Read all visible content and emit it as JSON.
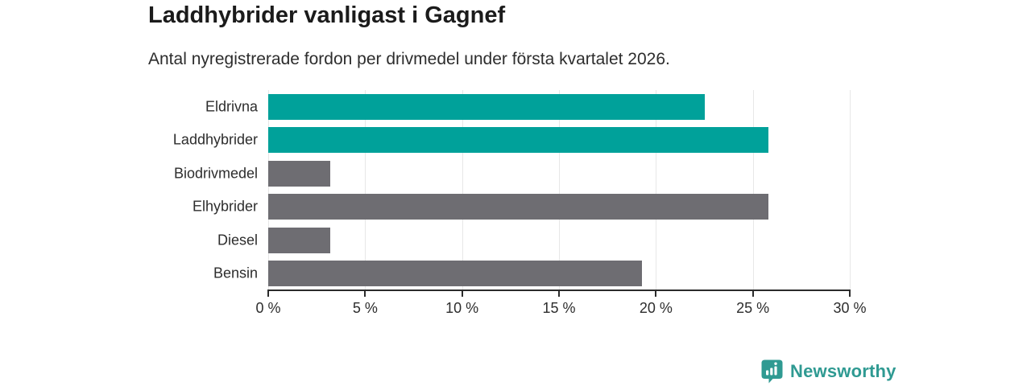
{
  "header": {
    "title": "Laddhybrider vanligast i Gagnef",
    "subtitle": "Antal nyregistrerade fordon per drivmedel under första kvartalet 2026."
  },
  "chart_data": {
    "type": "bar",
    "orientation": "horizontal",
    "title": "Laddhybrider vanligast i Gagnef",
    "subtitle": "Antal nyregistrerade fordon per drivmedel under första kvartalet 2026.",
    "categories": [
      "Eldrivna",
      "Laddhybrider",
      "Biodrivmedel",
      "Elhybrider",
      "Diesel",
      "Bensin"
    ],
    "values": [
      22.5,
      25.8,
      3.2,
      25.8,
      3.2,
      19.3
    ],
    "unit": "%",
    "bar_colors": [
      "#00a19a",
      "#00a19a",
      "#6e6d72",
      "#6e6d72",
      "#6e6d72",
      "#6e6d72"
    ],
    "xlim": [
      0,
      30
    ],
    "x_ticks": [
      0,
      5,
      10,
      15,
      20,
      25,
      30
    ],
    "x_tick_suffix": " %",
    "xlabel": "",
    "ylabel": "",
    "grid": true,
    "legend": "none"
  },
  "footer": {
    "brand": "Newsworthy"
  },
  "colors": {
    "accent_teal": "#00a19a",
    "neutral_gray": "#6e6d72",
    "brand_teal": "#2f9a92",
    "axis": "#2b2b2b",
    "gridline": "#e7e7e7",
    "text": "#2d2d2d"
  }
}
